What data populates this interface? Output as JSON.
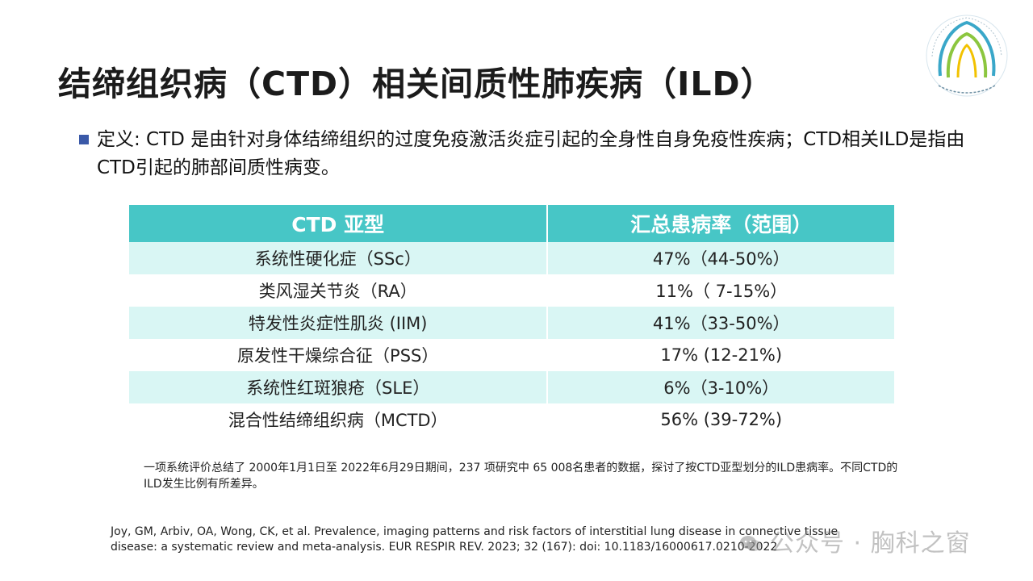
{
  "title": "结缔组织病（CTD）相关间质性肺疾病（ILD）",
  "logo": {
    "icon": "organization-logo-seal"
  },
  "definition": "定义: CTD 是由针对身体结缔组织的过度免疫激活炎症引起的全身性自身免疫性疾病；CTD相关ILD是指由CTD引起的肺部间质性病变。",
  "table": {
    "headers": [
      "CTD 亚型",
      "汇总患病率（范围）"
    ],
    "rows": [
      [
        "系统性硬化症（SSc）",
        "47%（44-50%）"
      ],
      [
        "类风湿关节炎（RA）",
        "11%（ 7-15%）"
      ],
      [
        "特发性炎症性肌炎 (IIM)",
        "41%（33-50%）"
      ],
      [
        "原发性干燥综合征（PSS）",
        "17% (12-21%)"
      ],
      [
        "系统性红斑狼疮（SLE）",
        "6%（3-10%）"
      ],
      [
        "混合性结缔组织病（MCTD）",
        "56% (39-72%)"
      ]
    ]
  },
  "note": "一项系统评价总结了 2000年1月1日至 2022年6月29日期间，237 项研究中 65 008名患者的数据，探讨了按CTD亚型划分的ILD患病率。不同CTD的ILD发生比例有所差异。",
  "citation": "Joy, GM, Arbiv, OA, Wong, CK, et al. Prevalence, imaging patterns and risk factors of interstitial lung disease in connective tissue disease: a systematic review and meta-analysis. EUR RESPIR REV. 2023; 32 (167): doi: 10.1183/16000617.0210-2022",
  "watermark": {
    "text": "公众号 · 胸科之窗",
    "icon": "wechat-icon"
  },
  "colors": {
    "header_bg": "#47c6c6",
    "row_alt_bg": "#d9f6f4",
    "bullet": "#3a59a8"
  }
}
